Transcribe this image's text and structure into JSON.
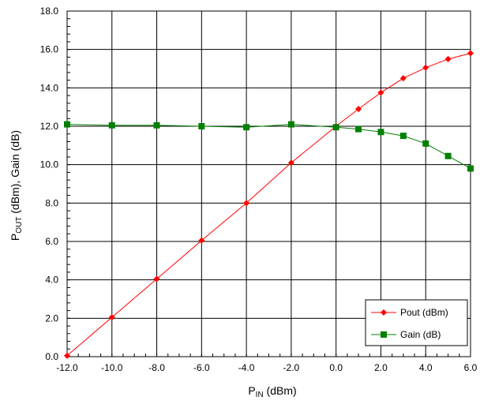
{
  "chart_data": {
    "type": "line",
    "xlabel": {
      "main": "P",
      "sub": "IN",
      "unit": " (dBm)"
    },
    "ylabel": {
      "p1": "P",
      "sub": "OUT",
      "p2": " (dBm), Gain (dB)"
    },
    "xlim": [
      -12,
      6
    ],
    "ylim": [
      0,
      18
    ],
    "x_ticks": [
      -12,
      -10,
      -8,
      -6,
      -4,
      -2,
      0,
      2,
      4,
      6
    ],
    "x_tick_labels": [
      "-12.0",
      "-10.0",
      "-8.0",
      "-6.0",
      "-4.0",
      "-2.0",
      "0.0",
      "2.0",
      "4.0",
      "6.0"
    ],
    "y_ticks": [
      0,
      2,
      4,
      6,
      8,
      10,
      12,
      14,
      16,
      18
    ],
    "y_tick_labels": [
      "0.0",
      "2.0",
      "4.0",
      "6.0",
      "8.0",
      "10.0",
      "12.0",
      "14.0",
      "16.0",
      "18.0"
    ],
    "grid": true,
    "legend_position": "bottom-right",
    "series": [
      {
        "name": "Pout (dBm)",
        "color": "#ff0000",
        "marker": "diamond",
        "x": [
          -12,
          -10,
          -8,
          -6,
          -4,
          -2,
          0,
          1,
          2,
          3,
          4,
          5,
          6
        ],
        "y": [
          0.05,
          2.05,
          4.05,
          6.05,
          8.0,
          10.1,
          12.0,
          12.9,
          13.75,
          14.5,
          15.05,
          15.5,
          15.8
        ]
      },
      {
        "name": "Gain (dB)",
        "color": "#008000",
        "marker": "square",
        "x": [
          -12,
          -10,
          -8,
          -6,
          -4,
          -2,
          0,
          1,
          2,
          3,
          4,
          5,
          6
        ],
        "y": [
          12.1,
          12.05,
          12.05,
          12.0,
          11.95,
          12.1,
          11.95,
          11.85,
          11.7,
          11.5,
          11.1,
          10.45,
          9.8
        ]
      }
    ]
  }
}
